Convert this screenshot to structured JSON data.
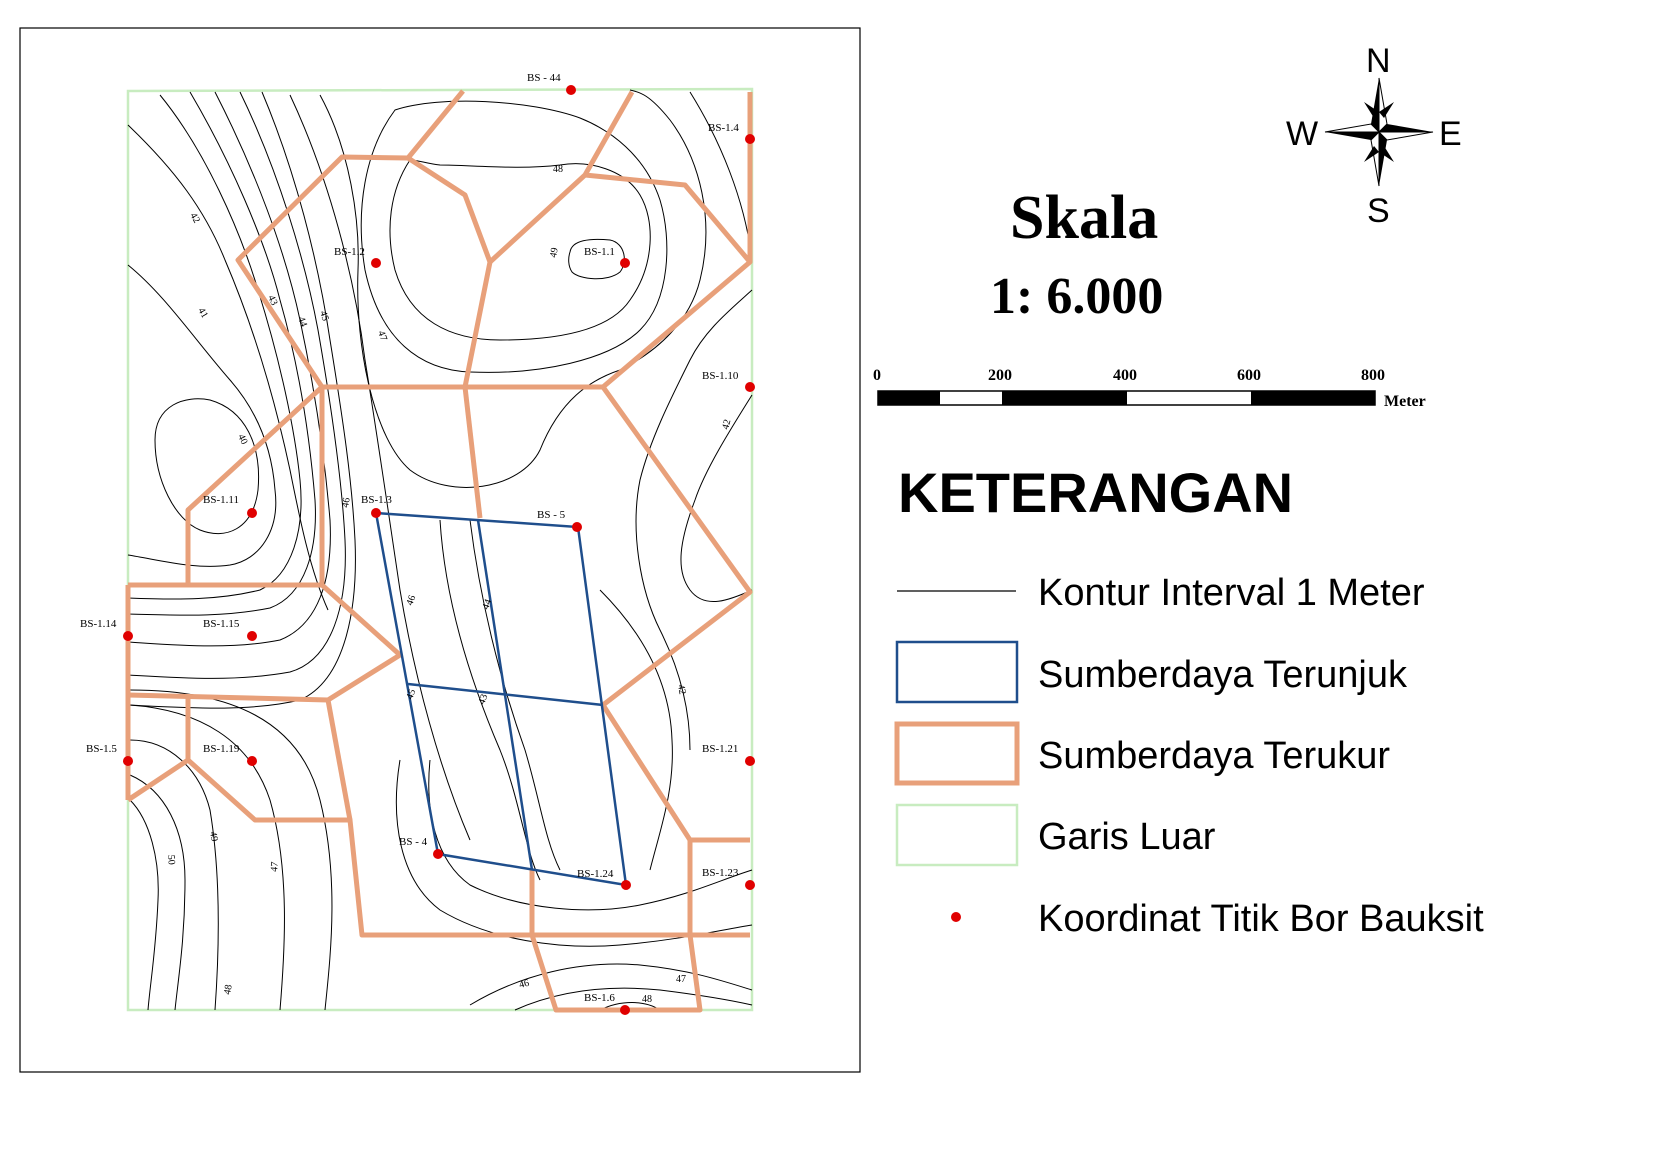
{
  "scale": {
    "title": "Skala",
    "ratio": "1: 6.000",
    "bar_ticks": [
      "0",
      "200",
      "400",
      "600",
      "800"
    ],
    "unit": "Meter"
  },
  "compass": {
    "n": "N",
    "s": "S",
    "e": "E",
    "w": "W"
  },
  "legend": {
    "title": "KETERANGAN",
    "items": [
      {
        "label": "Kontur Interval 1 Meter",
        "symbol": "contour-line"
      },
      {
        "label": "Sumberdaya Terunjuk",
        "symbol": "blue-box"
      },
      {
        "label": "Sumberdaya Terukur",
        "symbol": "orange-box"
      },
      {
        "label": "Garis Luar",
        "symbol": "green-box"
      },
      {
        "label": "Koordinat Titik Bor Bauksit",
        "symbol": "red-dot"
      }
    ]
  },
  "colors": {
    "contour": "#000000",
    "terunjuk": "#1f4e8c",
    "terukur": "#e8a07a",
    "garis_luar": "#c8ecc0",
    "boreholes": "#e00000"
  },
  "boreholes": [
    {
      "id": "BS - 44"
    },
    {
      "id": "BS-1.4"
    },
    {
      "id": "BS-1.2"
    },
    {
      "id": "BS-1.1"
    },
    {
      "id": "BS-1.10"
    },
    {
      "id": "BS-1.11"
    },
    {
      "id": "BS-1.3"
    },
    {
      "id": "BS - 5"
    },
    {
      "id": "BS-1.14"
    },
    {
      "id": "BS-1.15"
    },
    {
      "id": "BS-1.5"
    },
    {
      "id": "BS-1.19"
    },
    {
      "id": "BS-1.21"
    },
    {
      "id": "BS - 4"
    },
    {
      "id": "BS-1.24"
    },
    {
      "id": "BS-1.23"
    },
    {
      "id": "BS-1.6"
    }
  ],
  "contour_labels": [
    "42",
    "41",
    "43",
    "44",
    "45",
    "47",
    "48",
    "49",
    "40",
    "46",
    "46",
    "44",
    "45",
    "43",
    "42",
    "42",
    "49",
    "50",
    "47",
    "48",
    "46",
    "47",
    "48"
  ]
}
